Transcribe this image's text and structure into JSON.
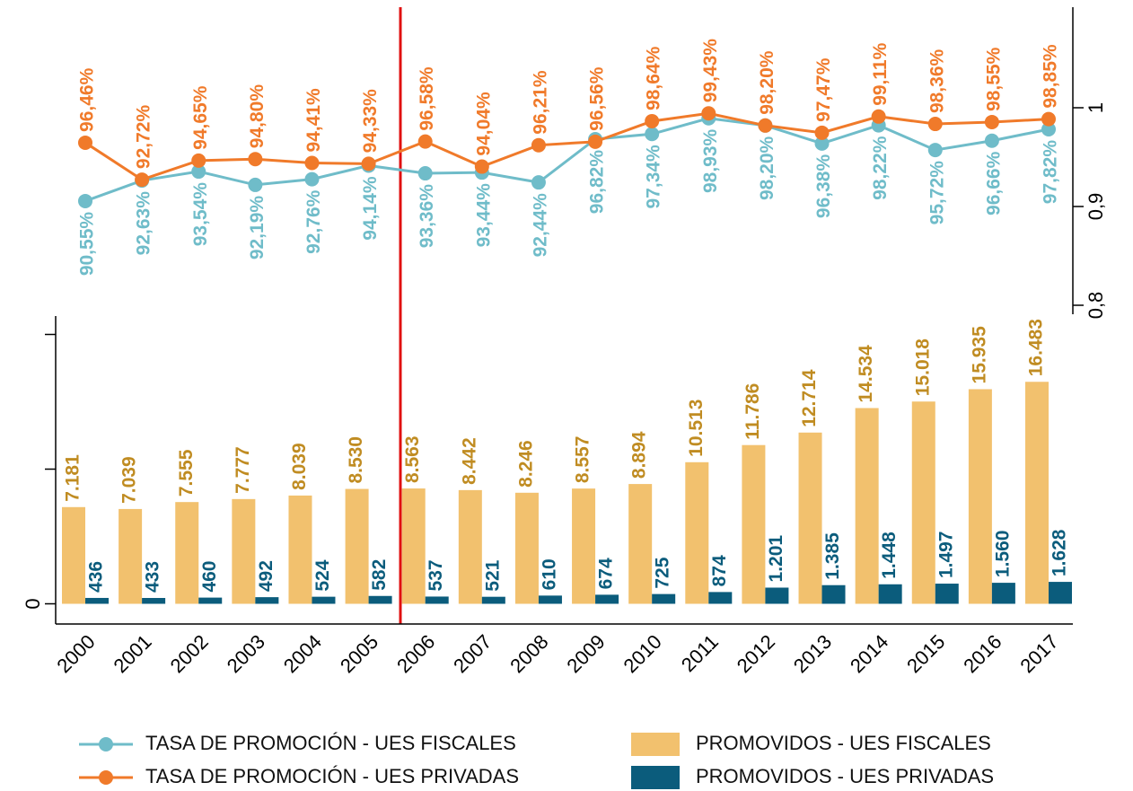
{
  "chart_data": {
    "type": "bar",
    "categories": [
      "2000",
      "2001",
      "2002",
      "2003",
      "2004",
      "2005",
      "2006",
      "2007",
      "2008",
      "2009",
      "2010",
      "2011",
      "2012",
      "2013",
      "2014",
      "2015",
      "2016",
      "2017"
    ],
    "series": [
      {
        "name": "PROMOVIDOS - UES FISCALES",
        "color": "#f2c16e",
        "label_color": "#c08c22",
        "values": [
          7181,
          7039,
          7555,
          7777,
          8039,
          8530,
          8563,
          8442,
          8246,
          8557,
          8894,
          10513,
          11786,
          12714,
          14534,
          15018,
          15935,
          16483
        ],
        "value_labels": [
          "7.181",
          "7.039",
          "7.555",
          "7.777",
          "8.039",
          "8.530",
          "8.563",
          "8.442",
          "8.246",
          "8.557",
          "8.894",
          "10.513",
          "11.786",
          "12.714",
          "14.534",
          "15.018",
          "15.935",
          "16.483"
        ]
      },
      {
        "name": "PROMOVIDOS - UES PRIVADAS",
        "color": "#0b5c7c",
        "label_color": "#0b5c7c",
        "values": [
          436,
          433,
          460,
          492,
          524,
          582,
          537,
          521,
          610,
          674,
          725,
          874,
          1201,
          1385,
          1448,
          1497,
          1560,
          1628
        ],
        "value_labels": [
          "436",
          "433",
          "460",
          "492",
          "524",
          "582",
          "537",
          "521",
          "610",
          "674",
          "725",
          "874",
          "1.201",
          "1.385",
          "1.448",
          "1.497",
          "1.560",
          "1.628"
        ]
      },
      {
        "name": "TASA DE PROMOCIÓN - UES FISCALES",
        "type": "line",
        "axis": "y2",
        "color": "#6fbcc9",
        "values": [
          0.9055,
          0.9263,
          0.9354,
          0.9219,
          0.9276,
          0.9414,
          0.9336,
          0.9344,
          0.9244,
          0.9682,
          0.9734,
          0.9893,
          0.982,
          0.9638,
          0.9822,
          0.9572,
          0.9666,
          0.9782
        ],
        "value_labels": [
          "90,55%",
          "92,63%",
          "93,54%",
          "92,19%",
          "92,76%",
          "94,14%",
          "93,36%",
          "93,44%",
          "92,44%",
          "96,82%",
          "97,34%",
          "98,93%",
          "98,20%",
          "96,38%",
          "98,22%",
          "95,72%",
          "96,66%",
          "97,82%"
        ]
      },
      {
        "name": "TASA DE PROMOCIÓN - UES PRIVADAS",
        "type": "line",
        "axis": "y2",
        "color": "#f07a2a",
        "values": [
          0.9646,
          0.9272,
          0.9465,
          0.948,
          0.9441,
          0.9433,
          0.9658,
          0.9404,
          0.9621,
          0.9656,
          0.9864,
          0.9943,
          0.982,
          0.9747,
          0.9911,
          0.9836,
          0.9855,
          0.9885
        ],
        "value_labels": [
          "96,46%",
          "92,72%",
          "94,65%",
          "94,80%",
          "94,41%",
          "94,33%",
          "96,58%",
          "94,04%",
          "96,21%",
          "96,56%",
          "98,64%",
          "99,43%",
          "98,20%",
          "97,47%",
          "99,11%",
          "98,36%",
          "98,55%",
          "98,85%"
        ]
      }
    ],
    "ylim": [
      -1500,
      21000
    ],
    "yticks": [
      0,
      {
        "value": 10000,
        "label": null
      },
      {
        "value": 20000,
        "label": null
      }
    ],
    "y2lim": [
      0.8,
      1
    ],
    "y2ticks": [
      {
        "value": 0.8,
        "label": "0,8"
      },
      {
        "value": 0.9,
        "label": "0,9"
      },
      1
    ]
  }
}
